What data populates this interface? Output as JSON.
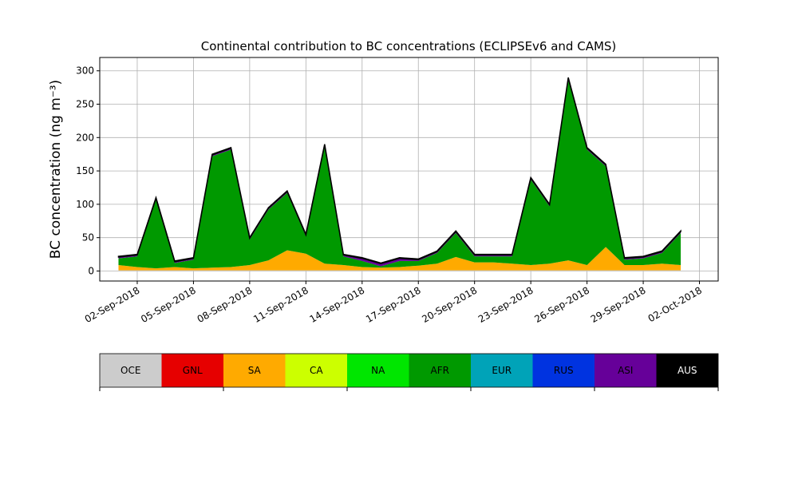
{
  "chart_data": {
    "type": "stacked_area",
    "title": "Continental contribution to BC concentrations (ECLIPSEv6 and CAMS)",
    "y_label": "BC concentration (ng m⁻³)",
    "x": [
      "2018-09-01",
      "2018-09-02",
      "2018-09-03",
      "2018-09-04",
      "2018-09-05",
      "2018-09-06",
      "2018-09-07",
      "2018-09-08",
      "2018-09-09",
      "2018-09-10",
      "2018-09-11",
      "2018-09-12",
      "2018-09-13",
      "2018-09-14",
      "2018-09-15",
      "2018-09-16",
      "2018-09-17",
      "2018-09-18",
      "2018-09-19",
      "2018-09-20",
      "2018-09-21",
      "2018-09-22",
      "2018-09-23",
      "2018-09-24",
      "2018-09-25",
      "2018-09-26",
      "2018-09-27",
      "2018-09-28",
      "2018-09-29",
      "2018-09-30",
      "2018-10-01"
    ],
    "xlim": [
      "2018-08-31",
      "2018-10-03"
    ],
    "xticks": [
      {
        "value": "2018-09-02",
        "label": "02-Sep-2018"
      },
      {
        "value": "2018-09-05",
        "label": "05-Sep-2018"
      },
      {
        "value": "2018-09-08",
        "label": "08-Sep-2018"
      },
      {
        "value": "2018-09-11",
        "label": "11-Sep-2018"
      },
      {
        "value": "2018-09-14",
        "label": "14-Sep-2018"
      },
      {
        "value": "2018-09-17",
        "label": "17-Sep-2018"
      },
      {
        "value": "2018-09-20",
        "label": "20-Sep-2018"
      },
      {
        "value": "2018-09-23",
        "label": "23-Sep-2018"
      },
      {
        "value": "2018-09-26",
        "label": "26-Sep-2018"
      },
      {
        "value": "2018-09-29",
        "label": "29-Sep-2018"
      },
      {
        "value": "2018-10-02",
        "label": "02-Oct-2018"
      }
    ],
    "ylim": [
      -15,
      320
    ],
    "yticks": [
      0,
      50,
      100,
      150,
      200,
      250,
      300
    ],
    "grid": true,
    "series": [
      {
        "name": "OCE",
        "color": "#cccccc",
        "values": [
          1,
          1,
          1,
          1,
          1,
          1,
          1,
          1,
          1,
          1,
          1,
          1,
          1,
          1,
          1,
          1,
          1,
          1,
          1,
          1,
          1,
          1,
          1,
          1,
          1,
          1,
          1,
          1,
          1,
          1,
          1
        ]
      },
      {
        "name": "GNL",
        "color": "#e60000",
        "values": [
          0,
          0,
          0,
          0,
          0,
          0,
          0,
          0,
          0,
          0,
          0,
          0,
          0,
          0,
          0,
          0,
          0,
          0,
          0,
          0,
          0,
          0,
          0,
          0,
          0,
          0,
          0,
          0,
          0,
          0,
          0
        ]
      },
      {
        "name": "SA",
        "color": "#ffaa00",
        "values": [
          8,
          5,
          3,
          5,
          3,
          4,
          5,
          8,
          15,
          30,
          25,
          10,
          8,
          5,
          4,
          5,
          7,
          10,
          20,
          12,
          12,
          10,
          8,
          10,
          15,
          8,
          35,
          8,
          8,
          10,
          8
        ]
      },
      {
        "name": "CA",
        "color": "#ccff00",
        "values": [
          0,
          0,
          0,
          0,
          0,
          0,
          0,
          0,
          0,
          0,
          0,
          0,
          0,
          0,
          0,
          0,
          0,
          0,
          0,
          0,
          0,
          0,
          0,
          0,
          0,
          0,
          0,
          0,
          0,
          0,
          0
        ]
      },
      {
        "name": "NA",
        "color": "#00e600",
        "values": [
          0,
          0,
          0,
          0,
          0,
          0,
          0,
          0,
          0,
          0,
          0,
          0,
          0,
          0,
          0,
          0,
          0,
          0,
          0,
          0,
          0,
          0,
          0,
          0,
          0,
          0,
          0,
          0,
          0,
          0,
          0
        ]
      },
      {
        "name": "AFR",
        "color": "#009900",
        "values": [
          10,
          16,
          103,
          6,
          13,
          167,
          176,
          38,
          76,
          86,
          26,
          176,
          13,
          9,
          2,
          9,
          7,
          16,
          36,
          9,
          9,
          11,
          128,
          86,
          271,
          173,
          121,
          8,
          10,
          16,
          48
        ]
      },
      {
        "name": "EUR",
        "color": "#00a3b8",
        "values": [
          0,
          0,
          0,
          0,
          0,
          0,
          0,
          0,
          0,
          0,
          0,
          0,
          0,
          0,
          0,
          0,
          0,
          0,
          0,
          0,
          0,
          0,
          0,
          0,
          0,
          0,
          0,
          0,
          0,
          0,
          0
        ]
      },
      {
        "name": "RUS",
        "color": "#0033e0",
        "values": [
          0,
          0,
          0,
          0,
          0,
          0,
          0,
          0,
          0,
          0,
          0,
          0,
          0,
          0,
          0,
          0,
          0,
          0,
          0,
          0,
          0,
          0,
          0,
          0,
          0,
          0,
          0,
          0,
          0,
          0,
          0
        ]
      },
      {
        "name": "ASI",
        "color": "#660099",
        "values": [
          2,
          2,
          2,
          2,
          2,
          2,
          2,
          2,
          2,
          2,
          2,
          2,
          2,
          4,
          4,
          4,
          2,
          2,
          2,
          2,
          2,
          2,
          2,
          2,
          2,
          2,
          2,
          2,
          2,
          2,
          2
        ]
      },
      {
        "name": "AUS",
        "color": "#000000",
        "values": [
          1,
          1,
          1,
          1,
          1,
          1,
          1,
          1,
          1,
          1,
          1,
          1,
          1,
          1,
          1,
          1,
          1,
          1,
          1,
          1,
          1,
          1,
          1,
          1,
          1,
          1,
          1,
          1,
          1,
          1,
          1
        ]
      }
    ]
  }
}
